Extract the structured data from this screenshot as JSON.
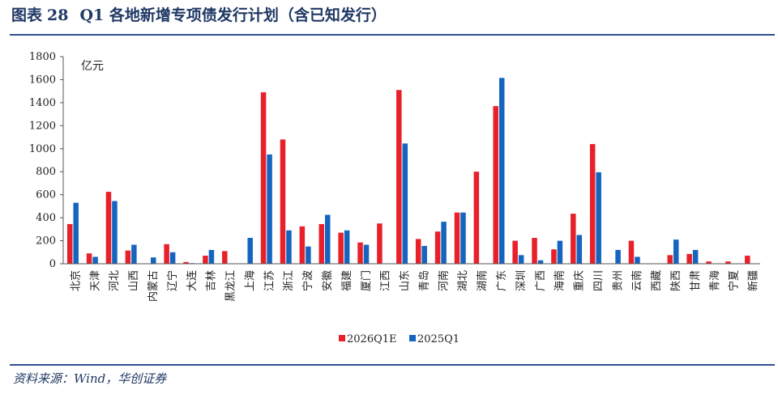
{
  "header": {
    "figure_label": "图表",
    "figure_number": "28",
    "title": "Q1 各地新增专项债发行计划（含已知发行）"
  },
  "footer": {
    "source": "资料来源：Wind，华创证券"
  },
  "colors": {
    "series_2026": "#e8202a",
    "series_2025": "#1565c0",
    "accent": "#1f3864"
  },
  "chart_data": {
    "type": "bar",
    "title": "Q1 各地新增专项债发行计划（含已知发行）",
    "ylabel": "亿元",
    "xlabel": "",
    "ylim": [
      0,
      1800
    ],
    "yticks": [
      0,
      200,
      400,
      600,
      800,
      1000,
      1200,
      1400,
      1600,
      1800
    ],
    "grid": false,
    "legend_position": "bottom-center",
    "categories": [
      "北京",
      "天津",
      "河北",
      "山西",
      "内蒙古",
      "辽宁",
      "大连",
      "吉林",
      "黑龙江",
      "上海",
      "江苏",
      "浙江",
      "宁波",
      "安徽",
      "福建",
      "厦门",
      "江西",
      "山东",
      "青岛",
      "河南",
      "湖北",
      "湖南",
      "广东",
      "深圳",
      "广西",
      "海南",
      "重庆",
      "四川",
      "贵州",
      "云南",
      "西藏",
      "陕西",
      "甘肃",
      "青海",
      "宁夏",
      "新疆"
    ],
    "series": [
      {
        "name": "2026Q1E",
        "values": [
          345,
          90,
          625,
          115,
          0,
          170,
          15,
          70,
          110,
          0,
          1490,
          1080,
          325,
          345,
          270,
          185,
          350,
          1510,
          215,
          280,
          445,
          800,
          1370,
          200,
          225,
          125,
          435,
          1040,
          0,
          200,
          0,
          75,
          85,
          20,
          20,
          70
        ]
      },
      {
        "name": "2025Q1",
        "values": [
          530,
          60,
          545,
          165,
          55,
          100,
          5,
          120,
          0,
          225,
          950,
          290,
          150,
          425,
          290,
          165,
          0,
          1045,
          155,
          365,
          445,
          0,
          1615,
          75,
          30,
          200,
          250,
          795,
          120,
          60,
          0,
          210,
          120,
          0,
          0,
          0
        ]
      }
    ]
  }
}
